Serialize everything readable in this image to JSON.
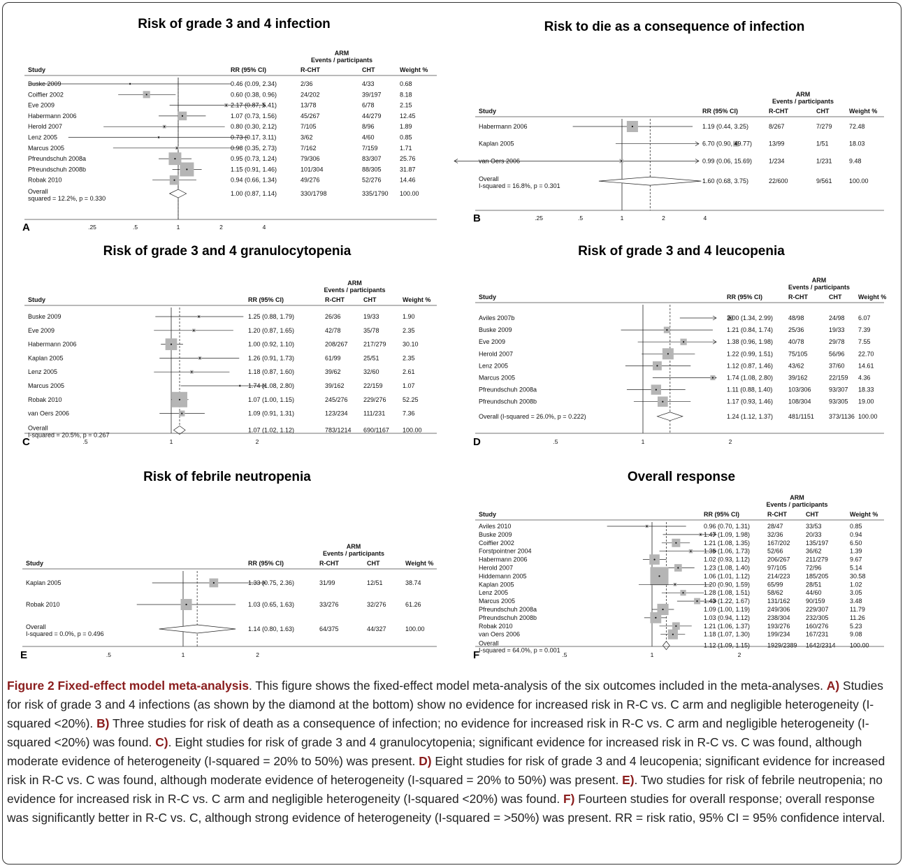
{
  "figure": {
    "caption_title": "Figure 2 Fixed-effect model meta-analysis",
    "caption_intro": ". This figure shows the fixed-effect model meta-analysis of the six outcomes included in the meta-analyses. ",
    "caption_parts": [
      {
        "label": "A)",
        "text": " Studies for risk of grade 3 and 4 infections (as shown by the diamond at the bottom) show no evidence for increased risk in R-C vs. C arm and negligible heterogeneity (I-squared <20%). "
      },
      {
        "label": "B)",
        "text": " Three studies for risk of death as a consequence of infection; no evidence for increased risk in R-C vs. C arm and negligible heterogeneity (I-squared <20%) was found. "
      },
      {
        "label": "C)",
        "text": ". Eight studies for risk of grade 3 and 4 granulocytopenia; significant evidence for increased risk in R-C vs. C was found, although moderate evidence of heterogeneity (I-squared = 20% to 50%) was present. "
      },
      {
        "label": "D)",
        "text": " Eight studies for risk of grade 3 and 4 leucopenia; significant evidence for increased risk in R-C vs. C was found, although moderate evidence of heterogeneity (I-squared = 20% to 50%) was present. "
      },
      {
        "label": "E)",
        "text": ". Two studies for risk of febrile neutropenia; no evidence for increased risk in R-C vs. C arm and negligible heterogeneity (I-squared <20%) was found. "
      },
      {
        "label": "F)",
        "text": " Fourteen studies for overall response; overall response was significantly better in R-C vs. C, although strong evidence of heterogeneity (I-squared = >50%) was present. RR = risk ratio, 95% CI = 95% confidence interval."
      }
    ]
  },
  "headers": {
    "arm": "ARM",
    "events": "Events / participants",
    "study": "Study",
    "rr": "RR (95% CI)",
    "rcht": "R-CHT",
    "cht": "CHT",
    "weight": "Weight %",
    "overall": "Overall"
  },
  "chart_data": [
    {
      "type": "forest",
      "letter": "A",
      "title": "Risk of grade 3 and 4 infection",
      "scale": "log",
      "xticks": [
        "0.25",
        "0.5",
        "1",
        "2",
        "4"
      ],
      "xtick_labels": [
        ".25",
        ".5",
        "1",
        "2",
        "4"
      ],
      "pooled": 1.0,
      "studies": [
        {
          "name": "Buske 2009",
          "rr": 0.46,
          "lo": 0.09,
          "hi": 2.34,
          "rr_text": "0.46 (0.09, 2.34)",
          "rcht": "2/36",
          "cht": "4/33",
          "weight": "0.68"
        },
        {
          "name": "Coiffier 2002",
          "rr": 0.6,
          "lo": 0.38,
          "hi": 0.96,
          "rr_text": "0.60 (0.38, 0.96)",
          "rcht": "24/202",
          "cht": "39/197",
          "weight": "8.18"
        },
        {
          "name": "Eve 2009",
          "rr": 2.17,
          "lo": 0.87,
          "hi": 5.41,
          "rr_text": "2.17 (0.87, 5.41)",
          "rcht": "13/78",
          "cht": "6/78",
          "weight": "2.15"
        },
        {
          "name": "Habermann 2006",
          "rr": 1.07,
          "lo": 0.73,
          "hi": 1.56,
          "rr_text": "1.07 (0.73, 1.56)",
          "rcht": "45/267",
          "cht": "44/279",
          "weight": "12.45"
        },
        {
          "name": "Herold 2007",
          "rr": 0.8,
          "lo": 0.3,
          "hi": 2.12,
          "rr_text": "0.80 (0.30, 2.12)",
          "rcht": "7/105",
          "cht": "8/96",
          "weight": "1.89"
        },
        {
          "name": "Lenz 2005",
          "rr": 0.73,
          "lo": 0.17,
          "hi": 3.11,
          "rr_text": "0.73 (0.17, 3.11)",
          "rcht": "3/62",
          "cht": "4/60",
          "weight": "0.85"
        },
        {
          "name": "Marcus 2005",
          "rr": 0.98,
          "lo": 0.35,
          "hi": 2.73,
          "rr_text": "0.98 (0.35, 2.73)",
          "rcht": "7/162",
          "cht": "7/159",
          "weight": "1.71"
        },
        {
          "name": "Pfreundschuh 2008a",
          "rr": 0.95,
          "lo": 0.73,
          "hi": 1.24,
          "rr_text": "0.95 (0.73, 1.24)",
          "rcht": "79/306",
          "cht": "83/307",
          "weight": "25.76"
        },
        {
          "name": "Pfreundschuh 2008b",
          "rr": 1.15,
          "lo": 0.91,
          "hi": 1.46,
          "rr_text": "1.15 (0.91, 1.46)",
          "rcht": "101/304",
          "cht": "88/305",
          "weight": "31.87"
        },
        {
          "name": "Robak 2010",
          "rr": 0.94,
          "lo": 0.66,
          "hi": 1.34,
          "rr_text": "0.94 (0.66, 1.34)",
          "rcht": "49/276",
          "cht": "52/276",
          "weight": "14.46"
        }
      ],
      "overall": {
        "rr": 1.0,
        "lo": 0.87,
        "hi": 1.14,
        "rr_text": "1.00 (0.87, 1.14)",
        "rcht": "330/1798",
        "cht": "335/1790",
        "weight": "100.00",
        "het": "squared = 12.2%, p = 0.330"
      }
    },
    {
      "type": "forest",
      "letter": "B",
      "title": "Risk to die as a consequence of infection",
      "scale": "log",
      "xticks": [
        "0.25",
        "0.5",
        "1",
        "2",
        "4"
      ],
      "xtick_labels": [
        ".25",
        ".5",
        "1",
        "2",
        "4"
      ],
      "pooled": 1.6,
      "studies": [
        {
          "name": "Habermann 2006",
          "rr": 1.19,
          "lo": 0.44,
          "hi": 3.25,
          "rr_text": "1.19 (0.44, 3.25)",
          "rcht": "8/267",
          "cht": "7/279",
          "weight": "72.48"
        },
        {
          "name": "Kaplan 2005",
          "rr": 6.7,
          "lo": 0.9,
          "hi": 49.77,
          "rr_text": "6.70 (0.90, 49.77)",
          "rcht": "13/99",
          "cht": "1/51",
          "weight": "18.03"
        },
        {
          "name": "van Oers 2006",
          "rr": 0.99,
          "lo": 0.06,
          "hi": 15.69,
          "rr_text": "0.99 (0.06, 15.69)",
          "rcht": "1/234",
          "cht": "1/231",
          "weight": "9.48"
        }
      ],
      "overall": {
        "rr": 1.6,
        "lo": 0.68,
        "hi": 3.75,
        "rr_text": "1.60 (0.68, 3.75)",
        "rcht": "22/600",
        "cht": "9/561",
        "weight": "100.00",
        "het": "I-squared = 16.8%, p = 0.301"
      }
    },
    {
      "type": "forest",
      "letter": "C",
      "title": "Risk of grade 3 and 4 granulocytopenia",
      "scale": "log",
      "xticks": [
        "0.5",
        "1",
        "2"
      ],
      "xtick_labels": [
        ".5",
        "1",
        "2"
      ],
      "pooled": 1.07,
      "studies": [
        {
          "name": "Buske 2009",
          "rr": 1.25,
          "lo": 0.88,
          "hi": 1.79,
          "rr_text": "1.25 (0.88, 1.79)",
          "rcht": "26/36",
          "cht": "19/33",
          "weight": "1.90"
        },
        {
          "name": "Eve 2009",
          "rr": 1.2,
          "lo": 0.87,
          "hi": 1.65,
          "rr_text": "1.20 (0.87, 1.65)",
          "rcht": "42/78",
          "cht": "35/78",
          "weight": "2.35"
        },
        {
          "name": "Habermann 2006",
          "rr": 1.0,
          "lo": 0.92,
          "hi": 1.1,
          "rr_text": "1.00 (0.92, 1.10)",
          "rcht": "208/267",
          "cht": "217/279",
          "weight": "30.10"
        },
        {
          "name": "Kaplan 2005",
          "rr": 1.26,
          "lo": 0.91,
          "hi": 1.73,
          "rr_text": "1.26 (0.91, 1.73)",
          "rcht": "61/99",
          "cht": "25/51",
          "weight": "2.35"
        },
        {
          "name": "Lenz 2005",
          "rr": 1.18,
          "lo": 0.87,
          "hi": 1.6,
          "rr_text": "1.18 (0.87, 1.60)",
          "rcht": "39/62",
          "cht": "32/60",
          "weight": "2.61"
        },
        {
          "name": "Marcus 2005",
          "rr": 1.74,
          "lo": 1.08,
          "hi": 2.8,
          "rr_text": "1.74 (1.08, 2.80)",
          "rcht": "39/162",
          "cht": "22/159",
          "weight": "1.07"
        },
        {
          "name": "Robak 2010",
          "rr": 1.07,
          "lo": 1.0,
          "hi": 1.15,
          "rr_text": "1.07 (1.00, 1.15)",
          "rcht": "245/276",
          "cht": "229/276",
          "weight": "52.25"
        },
        {
          "name": "van Oers 2006",
          "rr": 1.09,
          "lo": 0.91,
          "hi": 1.31,
          "rr_text": "1.09 (0.91, 1.31)",
          "rcht": "123/234",
          "cht": "111/231",
          "weight": "7.36"
        }
      ],
      "overall": {
        "rr": 1.07,
        "lo": 1.02,
        "hi": 1.12,
        "rr_text": "1.07 (1.02, 1.12)",
        "rcht": "783/1214",
        "cht": "690/1167",
        "weight": "100.00",
        "het": "I-squared = 20.5%, p = 0.267"
      }
    },
    {
      "type": "forest",
      "letter": "D",
      "title": "Risk of grade 3 and 4 leucopenia",
      "scale": "log",
      "xticks": [
        "0.5",
        "1",
        "2"
      ],
      "xtick_labels": [
        ".5",
        "1",
        "2"
      ],
      "pooled": 1.24,
      "studies": [
        {
          "name": "Aviles 2007b",
          "rr": 2.0,
          "lo": 1.34,
          "hi": 2.99,
          "rr_text": "2.00 (1.34, 2.99)",
          "rcht": "48/98",
          "cht": "24/98",
          "weight": "6.07"
        },
        {
          "name": "Buske 2009",
          "rr": 1.21,
          "lo": 0.84,
          "hi": 1.74,
          "rr_text": "1.21 (0.84, 1.74)",
          "rcht": "25/36",
          "cht": "19/33",
          "weight": "7.39"
        },
        {
          "name": "Eve 2009",
          "rr": 1.38,
          "lo": 0.96,
          "hi": 1.98,
          "rr_text": "1.38 (0.96, 1.98)",
          "rcht": "40/78",
          "cht": "29/78",
          "weight": "7.55"
        },
        {
          "name": "Herold 2007",
          "rr": 1.22,
          "lo": 0.99,
          "hi": 1.51,
          "rr_text": "1.22 (0.99, 1.51)",
          "rcht": "75/105",
          "cht": "56/96",
          "weight": "22.70"
        },
        {
          "name": "Lenz 2005",
          "rr": 1.12,
          "lo": 0.87,
          "hi": 1.46,
          "rr_text": "1.12 (0.87, 1.46)",
          "rcht": "43/62",
          "cht": "37/60",
          "weight": "14.61"
        },
        {
          "name": "Marcus 2005",
          "rr": 1.74,
          "lo": 1.08,
          "hi": 2.8,
          "rr_text": "1.74 (1.08, 2.80)",
          "rcht": "39/162",
          "cht": "22/159",
          "weight": "4.36"
        },
        {
          "name": "Pfreundschuh 2008a",
          "rr": 1.11,
          "lo": 0.88,
          "hi": 1.4,
          "rr_text": "1.11 (0.88, 1.40)",
          "rcht": "103/306",
          "cht": "93/307",
          "weight": "18.33"
        },
        {
          "name": "Pfreundschuh 2008b",
          "rr": 1.17,
          "lo": 0.93,
          "hi": 1.46,
          "rr_text": "1.17 (0.93, 1.46)",
          "rcht": "108/304",
          "cht": "93/305",
          "weight": "19.00"
        }
      ],
      "overall": {
        "label": "Overall  (I-squared = 26.0%, p = 0.222)",
        "rr": 1.24,
        "lo": 1.12,
        "hi": 1.37,
        "rr_text": "1.24 (1.12, 1.37)",
        "rcht": "481/1151",
        "cht": "373/1136",
        "weight": "100.00",
        "het": ""
      }
    },
    {
      "type": "forest",
      "letter": "E",
      "title": "Risk of febrile neutropenia",
      "scale": "log",
      "xticks": [
        "0.5",
        "1",
        "2"
      ],
      "xtick_labels": [
        ".5",
        "1",
        "2"
      ],
      "pooled": 1.14,
      "studies": [
        {
          "name": "Kaplan 2005",
          "rr": 1.33,
          "lo": 0.75,
          "hi": 2.36,
          "rr_text": "1.33 (0.75, 2.36)",
          "rcht": "31/99",
          "cht": "12/51",
          "weight": "38.74"
        },
        {
          "name": "Robak 2010",
          "rr": 1.03,
          "lo": 0.65,
          "hi": 1.63,
          "rr_text": "1.03 (0.65, 1.63)",
          "rcht": "33/276",
          "cht": "32/276",
          "weight": "61.26"
        }
      ],
      "overall": {
        "rr": 1.14,
        "lo": 0.8,
        "hi": 1.63,
        "rr_text": "1.14 (0.80, 1.63)",
        "rcht": "64/375",
        "cht": "44/327",
        "weight": "100.00",
        "het": "I-squared = 0.0%, p = 0.496"
      }
    },
    {
      "type": "forest",
      "letter": "F",
      "title": "Overall response",
      "scale": "log",
      "xticks": [
        "0.5",
        "1",
        "2"
      ],
      "xtick_labels": [
        ".5",
        "1",
        "2"
      ],
      "pooled": 1.12,
      "studies": [
        {
          "name": "Aviles 2010",
          "rr": 0.96,
          "lo": 0.7,
          "hi": 1.31,
          "rr_text": "0.96 (0.70, 1.31)",
          "rcht": "28/47",
          "cht": "33/53",
          "weight": "0.85"
        },
        {
          "name": "Buske 2009",
          "rr": 1.47,
          "lo": 1.09,
          "hi": 1.98,
          "rr_text": "1.47 (1.09, 1.98)",
          "rcht": "32/36",
          "cht": "20/33",
          "weight": "0.94"
        },
        {
          "name": "Coiffier 2002",
          "rr": 1.21,
          "lo": 1.08,
          "hi": 1.35,
          "rr_text": "1.21 (1.08, 1.35)",
          "rcht": "167/202",
          "cht": "135/197",
          "weight": "6.50"
        },
        {
          "name": "Forstpointner 2004",
          "rr": 1.36,
          "lo": 1.06,
          "hi": 1.73,
          "rr_text": "1.36 (1.06, 1.73)",
          "rcht": "52/66",
          "cht": "36/62",
          "weight": "1.39"
        },
        {
          "name": "Habermann 2006",
          "rr": 1.02,
          "lo": 0.93,
          "hi": 1.12,
          "rr_text": "1.02 (0.93, 1.12)",
          "rcht": "206/267",
          "cht": "211/279",
          "weight": "9.67"
        },
        {
          "name": "Herold 2007",
          "rr": 1.23,
          "lo": 1.08,
          "hi": 1.4,
          "rr_text": "1.23 (1.08, 1.40)",
          "rcht": "97/105",
          "cht": "72/96",
          "weight": "5.14"
        },
        {
          "name": "Hiddemann 2005",
          "rr": 1.06,
          "lo": 1.01,
          "hi": 1.12,
          "rr_text": "1.06 (1.01, 1.12)",
          "rcht": "214/223",
          "cht": "185/205",
          "weight": "30.58"
        },
        {
          "name": "Kaplan 2005",
          "rr": 1.2,
          "lo": 0.9,
          "hi": 1.59,
          "rr_text": "1.20 (0.90, 1.59)",
          "rcht": "65/99",
          "cht": "28/51",
          "weight": "1.02"
        },
        {
          "name": "Lenz 2005",
          "rr": 1.28,
          "lo": 1.08,
          "hi": 1.51,
          "rr_text": "1.28 (1.08, 1.51)",
          "rcht": "58/62",
          "cht": "44/60",
          "weight": "3.05"
        },
        {
          "name": "Marcus 2005",
          "rr": 1.43,
          "lo": 1.22,
          "hi": 1.67,
          "rr_text": "1.43 (1.22, 1.67)",
          "rcht": "131/162",
          "cht": "90/159",
          "weight": "3.48"
        },
        {
          "name": "Pfreundschuh 2008a",
          "rr": 1.09,
          "lo": 1.0,
          "hi": 1.19,
          "rr_text": "1.09 (1.00, 1.19)",
          "rcht": "249/306",
          "cht": "229/307",
          "weight": "11.79"
        },
        {
          "name": "Pfreundschuh 2008b",
          "rr": 1.03,
          "lo": 0.94,
          "hi": 1.12,
          "rr_text": "1.03 (0.94, 1.12)",
          "rcht": "238/304",
          "cht": "232/305",
          "weight": "11.26"
        },
        {
          "name": "Robak 2010",
          "rr": 1.21,
          "lo": 1.06,
          "hi": 1.37,
          "rr_text": "1.21 (1.06, 1.37)",
          "rcht": "193/276",
          "cht": "160/276",
          "weight": "5.23"
        },
        {
          "name": "van Oers 2006",
          "rr": 1.18,
          "lo": 1.07,
          "hi": 1.3,
          "rr_text": "1.18 (1.07, 1.30)",
          "rcht": "199/234",
          "cht": "167/231",
          "weight": "9.08"
        }
      ],
      "overall": {
        "rr": 1.12,
        "lo": 1.09,
        "hi": 1.15,
        "rr_text": "1.12 (1.09, 1.15)",
        "rcht": "1929/2389",
        "cht": "1642/2314",
        "weight": "100.00",
        "het": "I-squared = 64.0%, p = 0.001"
      }
    }
  ]
}
